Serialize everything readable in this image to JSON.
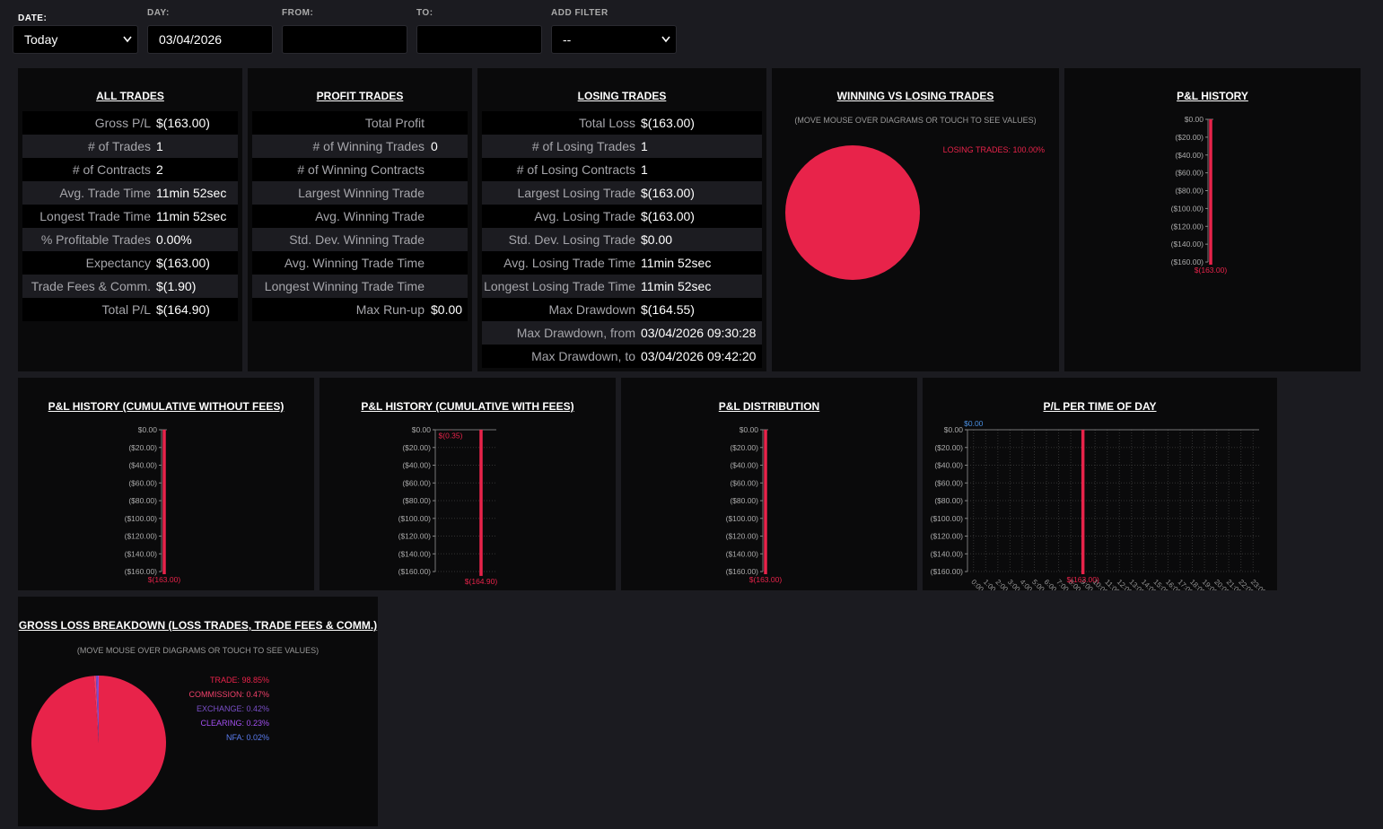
{
  "filters": {
    "date": {
      "label": "DATE:",
      "value": "Today"
    },
    "day": {
      "label": "DAY:",
      "value": "03/04/2026"
    },
    "from": {
      "label": "FROM:"
    },
    "to": {
      "label": "TO:"
    },
    "add_filter": {
      "label": "ADD FILTER",
      "value": "--"
    }
  },
  "tables": [
    {
      "title": "ALL TRADES",
      "rows": [
        [
          "Gross P/L",
          "$(163.00)"
        ],
        [
          "# of Trades",
          "1"
        ],
        [
          "# of Contracts",
          "2"
        ],
        [
          "Avg. Trade Time",
          "11min 52sec"
        ],
        [
          "Longest Trade Time",
          "11min 52sec"
        ],
        [
          "% Profitable Trades",
          "0.00%"
        ],
        [
          "Expectancy",
          "$(163.00)"
        ],
        [
          "Trade Fees & Comm.",
          "$(1.90)"
        ],
        [
          "Total P/L",
          "$(164.90)"
        ]
      ]
    },
    {
      "title": "PROFIT TRADES",
      "rows": [
        [
          "Total Profit"
        ],
        [
          "# of Winning Trades",
          "0"
        ],
        [
          "# of Winning Contracts"
        ],
        [
          "Largest Winning Trade"
        ],
        [
          "Avg. Winning Trade"
        ],
        [
          "Std. Dev. Winning Trade"
        ],
        [
          "Avg. Winning Trade Time"
        ],
        [
          "Longest Winning Trade Time"
        ],
        [
          "Max Run-up",
          "$0.00"
        ]
      ]
    },
    {
      "title": "LOSING TRADES",
      "rows": [
        [
          "Total Loss",
          "$(163.00)"
        ],
        [
          "# of Losing Trades",
          "1"
        ],
        [
          "# of Losing Contracts",
          "1"
        ],
        [
          "Largest Losing Trade",
          "$(163.00)"
        ],
        [
          "Avg. Losing Trade",
          "$(163.00)"
        ],
        [
          "Std. Dev. Losing Trade",
          "$0.00"
        ],
        [
          "Avg. Losing Trade Time",
          "11min 52sec"
        ],
        [
          "Longest Losing Trade Time",
          "11min 52sec"
        ],
        [
          "Max Drawdown",
          "$(164.55)"
        ],
        [
          "Max Drawdown, from",
          "03/04/2026 09:30:28"
        ],
        [
          "Max Drawdown, to",
          "03/04/2026 09:42:20"
        ]
      ]
    }
  ],
  "chart_data": [
    {
      "type": "pie",
      "title": "WINNING VS LOSING TRADES",
      "subtitle": "(MOVE MOUSE OVER DIAGRAMS OR TOUCH TO SEE VALUES)",
      "categories": [
        "LOSING TRADES"
      ],
      "values": [
        100
      ],
      "value_labels": [
        "LOSING TRADES: 100.00%"
      ],
      "colors": [
        "#e8234a"
      ]
    },
    {
      "type": "bar",
      "title": "P&L HISTORY",
      "categories": [
        null
      ],
      "values": [
        -163
      ],
      "value_labels": [
        "$(163.00)"
      ],
      "color": "#e8234a",
      "ylim": [
        -165,
        0
      ],
      "grid": false,
      "yticks": [
        {
          "value": 0,
          "label": "$0.00"
        },
        {
          "value": -20,
          "label": "($20.00)"
        },
        {
          "value": -40,
          "label": "($40.00)"
        },
        {
          "value": -60,
          "label": "($60.00)"
        },
        {
          "value": -80,
          "label": "($80.00)"
        },
        {
          "value": -100,
          "label": "($100.00)"
        },
        {
          "value": -120,
          "label": "($120.00)"
        },
        {
          "value": -140,
          "label": "($140.00)"
        },
        {
          "value": -160,
          "label": "($160.00)"
        }
      ]
    },
    {
      "type": "bar",
      "title": "P&L HISTORY (CUMULATIVE WITHOUT FEES)",
      "categories": [
        null
      ],
      "values": [
        -163
      ],
      "value_labels": [
        "$(163.00)"
      ],
      "color": "#e8234a",
      "ylim": [
        -165,
        0
      ],
      "grid": false,
      "yticks": [
        {
          "value": 0,
          "label": "$0.00"
        },
        {
          "value": -20,
          "label": "($20.00)"
        },
        {
          "value": -40,
          "label": "($40.00)"
        },
        {
          "value": -60,
          "label": "($60.00)"
        },
        {
          "value": -80,
          "label": "($80.00)"
        },
        {
          "value": -100,
          "label": "($100.00)"
        },
        {
          "value": -120,
          "label": "($120.00)"
        },
        {
          "value": -140,
          "label": "($140.00)"
        },
        {
          "value": -160,
          "label": "($160.00)"
        }
      ]
    },
    {
      "type": "bar",
      "title": "P&L HISTORY (CUMULATIVE WITH FEES)",
      "categories": [
        null,
        null
      ],
      "values": [
        -0.35,
        -164.9
      ],
      "value_labels": [
        "$(0.35)",
        "$(164.90)"
      ],
      "color": "#e8234a",
      "ylim": [
        -165,
        0
      ],
      "grid": true,
      "yticks": [
        {
          "value": 0,
          "label": "$0.00"
        },
        {
          "value": -20,
          "label": "($20.00)"
        },
        {
          "value": -40,
          "label": "($40.00)"
        },
        {
          "value": -60,
          "label": "($60.00)"
        },
        {
          "value": -80,
          "label": "($80.00)"
        },
        {
          "value": -100,
          "label": "($100.00)"
        },
        {
          "value": -120,
          "label": "($120.00)"
        },
        {
          "value": -140,
          "label": "($140.00)"
        },
        {
          "value": -160,
          "label": "($160.00)"
        }
      ]
    },
    {
      "type": "bar",
      "title": "P&L DISTRIBUTION",
      "categories": [
        null
      ],
      "values": [
        -163
      ],
      "value_labels": [
        "$(163.00)"
      ],
      "color": "#e8234a",
      "ylim": [
        -165,
        0
      ],
      "grid": false,
      "yticks": [
        {
          "value": 0,
          "label": "$0.00"
        },
        {
          "value": -20,
          "label": "($20.00)"
        },
        {
          "value": -40,
          "label": "($40.00)"
        },
        {
          "value": -60,
          "label": "($60.00)"
        },
        {
          "value": -80,
          "label": "($80.00)"
        },
        {
          "value": -100,
          "label": "($100.00)"
        },
        {
          "value": -120,
          "label": "($120.00)"
        },
        {
          "value": -140,
          "label": "($140.00)"
        },
        {
          "value": -160,
          "label": "($160.00)"
        }
      ]
    },
    {
      "type": "bar",
      "title": "P/L PER TIME OF DAY",
      "categories": [
        "0:00",
        "1:00",
        "2:00",
        "3:00",
        "4:00",
        "5:00",
        "6:00",
        "7:00",
        "8:00",
        "9:00",
        "10:00",
        "11:00",
        "12:00",
        "13:00",
        "14:00",
        "15:00",
        "16:00",
        "17:00",
        "18:00",
        "19:00",
        "20:00",
        "21:00",
        "22:00",
        "23:00"
      ],
      "values": [
        0,
        null,
        null,
        null,
        null,
        null,
        null,
        null,
        null,
        -163,
        null,
        null,
        null,
        null,
        null,
        null,
        null,
        null,
        null,
        null,
        null,
        null,
        null,
        null
      ],
      "value_labels": [
        "$0.00",
        null,
        null,
        null,
        null,
        null,
        null,
        null,
        null,
        "$(163.00)",
        null,
        null,
        null,
        null,
        null,
        null,
        null,
        null,
        null,
        null,
        null,
        null,
        null,
        null
      ],
      "color": "#e8234a",
      "positive_color": "#4a8fe0",
      "ylim": [
        -165,
        0
      ],
      "grid": true,
      "yticks": [
        {
          "value": 0,
          "label": "$0.00"
        },
        {
          "value": -20,
          "label": "($20.00)"
        },
        {
          "value": -40,
          "label": "($40.00)"
        },
        {
          "value": -60,
          "label": "($60.00)"
        },
        {
          "value": -80,
          "label": "($80.00)"
        },
        {
          "value": -100,
          "label": "($100.00)"
        },
        {
          "value": -120,
          "label": "($120.00)"
        },
        {
          "value": -140,
          "label": "($140.00)"
        },
        {
          "value": -160,
          "label": "($160.00)"
        }
      ]
    },
    {
      "type": "pie",
      "title": "GROSS LOSS BREAKDOWN (LOSS TRADES, TRADE FEES & COMM.)",
      "subtitle": "(MOVE MOUSE OVER DIAGRAMS OR TOUCH TO SEE VALUES)",
      "categories": [
        "TRADE",
        "COMMISSION",
        "EXCHANGE",
        "CLEARING",
        "NFA"
      ],
      "values": [
        98.85,
        0.47,
        0.42,
        0.23,
        0.02
      ],
      "value_labels": [
        "TRADE: 98.85%",
        "COMMISSION: 0.47%",
        "EXCHANGE: 0.42%",
        "CLEARING: 0.23%",
        "NFA: 0.02%"
      ],
      "colors": [
        "#e8234a",
        "#f0406a",
        "#7a4fc8",
        "#a24ff0",
        "#5b7cf0"
      ]
    }
  ]
}
